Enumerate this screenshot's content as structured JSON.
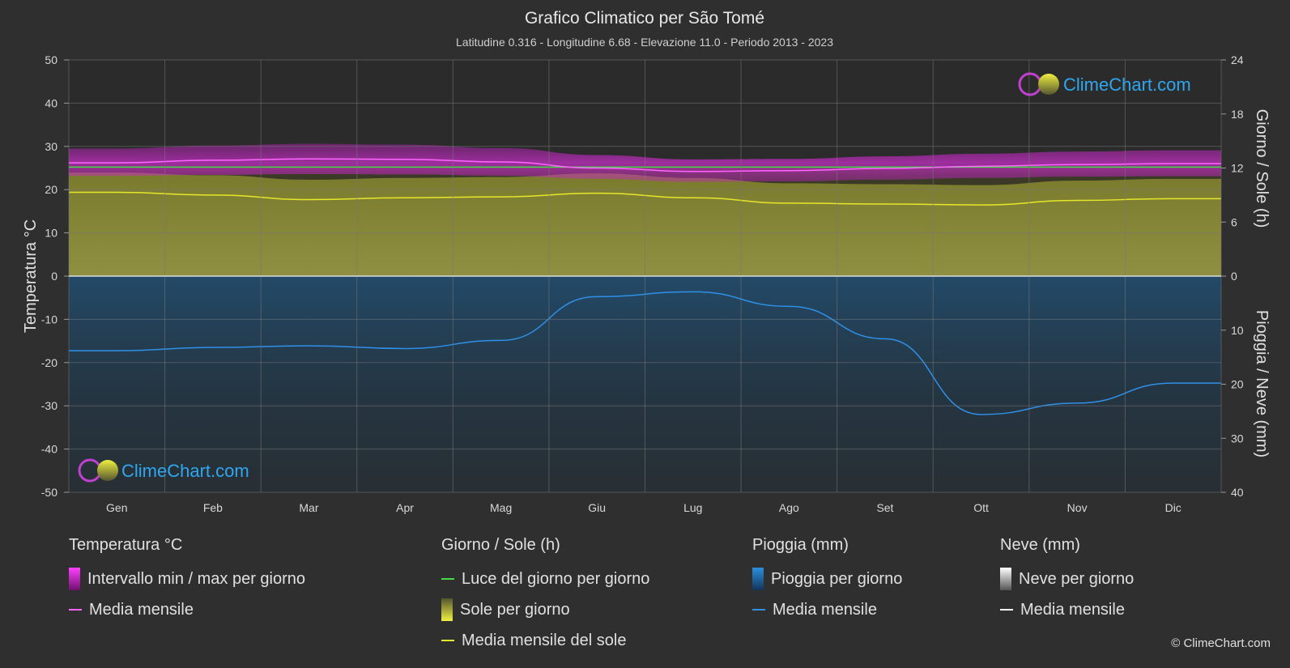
{
  "title": "Grafico Climatico per São Tomé",
  "subtitle": "Latitudine 0.316 - Longitudine 6.68 - Elevazione 11.0 - Periodo 2013 - 2023",
  "brand": "ClimeChart.com",
  "copyright": "© ClimeChart.com",
  "colors": {
    "background": "#2f2f2f",
    "temp_range": "#d020d0",
    "temp_mean": "#ff66ff",
    "daylight": "#44dd44",
    "sun_fill": "#9a9a3a",
    "sun_mean": "#e6e62a",
    "rain_fill": "#1a6fb0",
    "rain_mean": "#2e90e8",
    "snow_mean": "#ffffff"
  },
  "legend": {
    "temperature": {
      "title": "Temperatura °C",
      "range_label": "Intervallo min / max per giorno",
      "mean_label": "Media mensile"
    },
    "sun": {
      "title": "Giorno / Sole (h)",
      "daylight_label": "Luce del giorno per giorno",
      "sun_label": "Sole per giorno",
      "mean_label": "Media mensile del sole"
    },
    "rain": {
      "title": "Pioggia (mm)",
      "rain_label": "Pioggia per giorno",
      "mean_label": "Media mensile"
    },
    "snow": {
      "title": "Neve (mm)",
      "snow_label": "Neve per giorno",
      "mean_label": "Media mensile"
    }
  },
  "chart_data": {
    "type": "line",
    "months": [
      "Gen",
      "Feb",
      "Mar",
      "Apr",
      "Mag",
      "Giu",
      "Lug",
      "Ago",
      "Set",
      "Ott",
      "Nov",
      "Dic"
    ],
    "left_axis": {
      "label": "Temperatura °C",
      "ylim": [
        -50,
        50
      ],
      "ticks": [
        "50",
        "40",
        "30",
        "20",
        "10",
        "0",
        "-10",
        "-20",
        "-30",
        "-40",
        "-50"
      ]
    },
    "right_axis_top": {
      "label": "Giorno / Sole (h)",
      "ylim": [
        0,
        24
      ],
      "ticks": [
        "24",
        "18",
        "12",
        "6",
        "0"
      ]
    },
    "right_axis_bottom": {
      "label": "Pioggia / Neve (mm)",
      "ylim": [
        0,
        40
      ],
      "ticks": [
        "0",
        "10",
        "20",
        "30",
        "40"
      ]
    },
    "series": [
      {
        "name": "Media mensile",
        "axis": "temperature",
        "values": [
          26.2,
          26.8,
          27.1,
          27.0,
          26.4,
          25.0,
          24.2,
          24.4,
          24.9,
          25.4,
          25.8,
          26.0
        ]
      },
      {
        "name": "Intervallo min / max per giorno",
        "axis": "temperature",
        "min": [
          23.2,
          23.4,
          23.6,
          23.5,
          23.2,
          22.5,
          21.8,
          21.9,
          22.3,
          22.7,
          23.0,
          23.1
        ],
        "max": [
          29.5,
          30.2,
          30.6,
          30.4,
          29.6,
          28.0,
          27.0,
          27.1,
          27.7,
          28.3,
          28.8,
          29.1
        ]
      },
      {
        "name": "Luce del giorno per giorno",
        "axis": "sun",
        "values": [
          12.1,
          12.1,
          12.1,
          12.1,
          12.1,
          12.1,
          12.1,
          12.1,
          12.1,
          12.1,
          12.1,
          12.1
        ]
      },
      {
        "name": "Media mensile del sole",
        "axis": "sun",
        "values": [
          9.3,
          9.0,
          8.5,
          8.7,
          8.8,
          9.2,
          8.7,
          8.1,
          8.0,
          7.9,
          8.4,
          8.6
        ]
      },
      {
        "name": "Media mensile",
        "axis": "rain",
        "values": [
          13.8,
          13.2,
          12.9,
          13.4,
          11.9,
          3.8,
          2.9,
          5.6,
          11.6,
          25.6,
          23.5,
          19.8
        ]
      }
    ]
  }
}
